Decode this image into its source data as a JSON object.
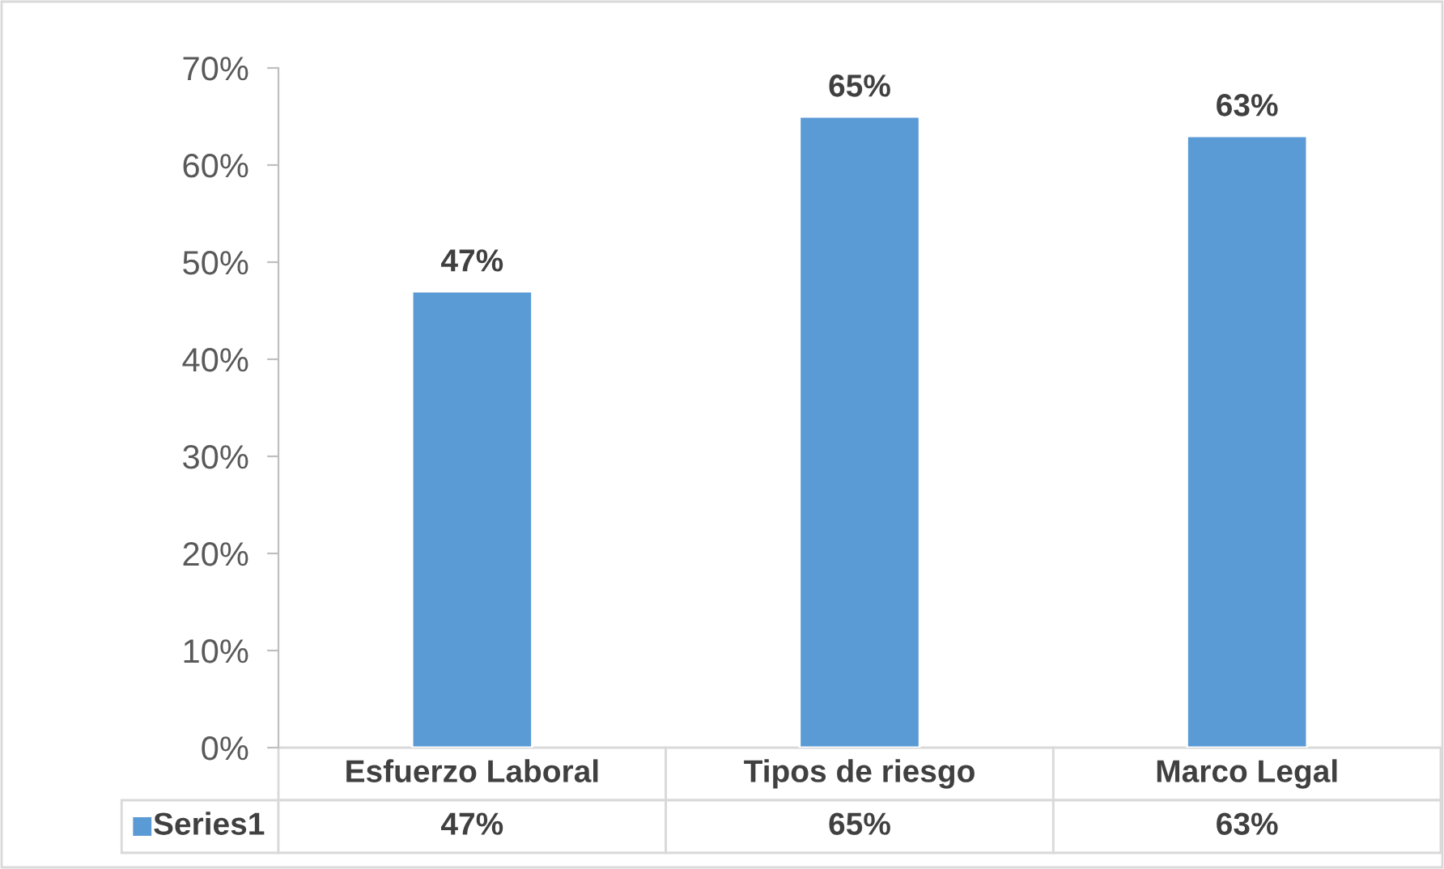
{
  "chart_data": {
    "type": "bar",
    "categories": [
      "Esfuerzo Laboral",
      "Tipos de riesgo",
      "Marco Legal"
    ],
    "series": [
      {
        "name": "Series1",
        "color": "#5b9bd5",
        "values": [
          47,
          65,
          63
        ],
        "value_labels": [
          "47%",
          "65%",
          "63%"
        ]
      }
    ],
    "ylim": [
      0,
      70
    ],
    "yticks": [
      {
        "value": 0,
        "label": "0%"
      },
      {
        "value": 10,
        "label": "10%"
      },
      {
        "value": 20,
        "label": "20%"
      },
      {
        "value": 30,
        "label": "30%"
      },
      {
        "value": 40,
        "label": "40%"
      },
      {
        "value": 50,
        "label": "50%"
      },
      {
        "value": 60,
        "label": "60%"
      },
      {
        "value": 70,
        "label": "70%"
      }
    ],
    "grid": false
  }
}
